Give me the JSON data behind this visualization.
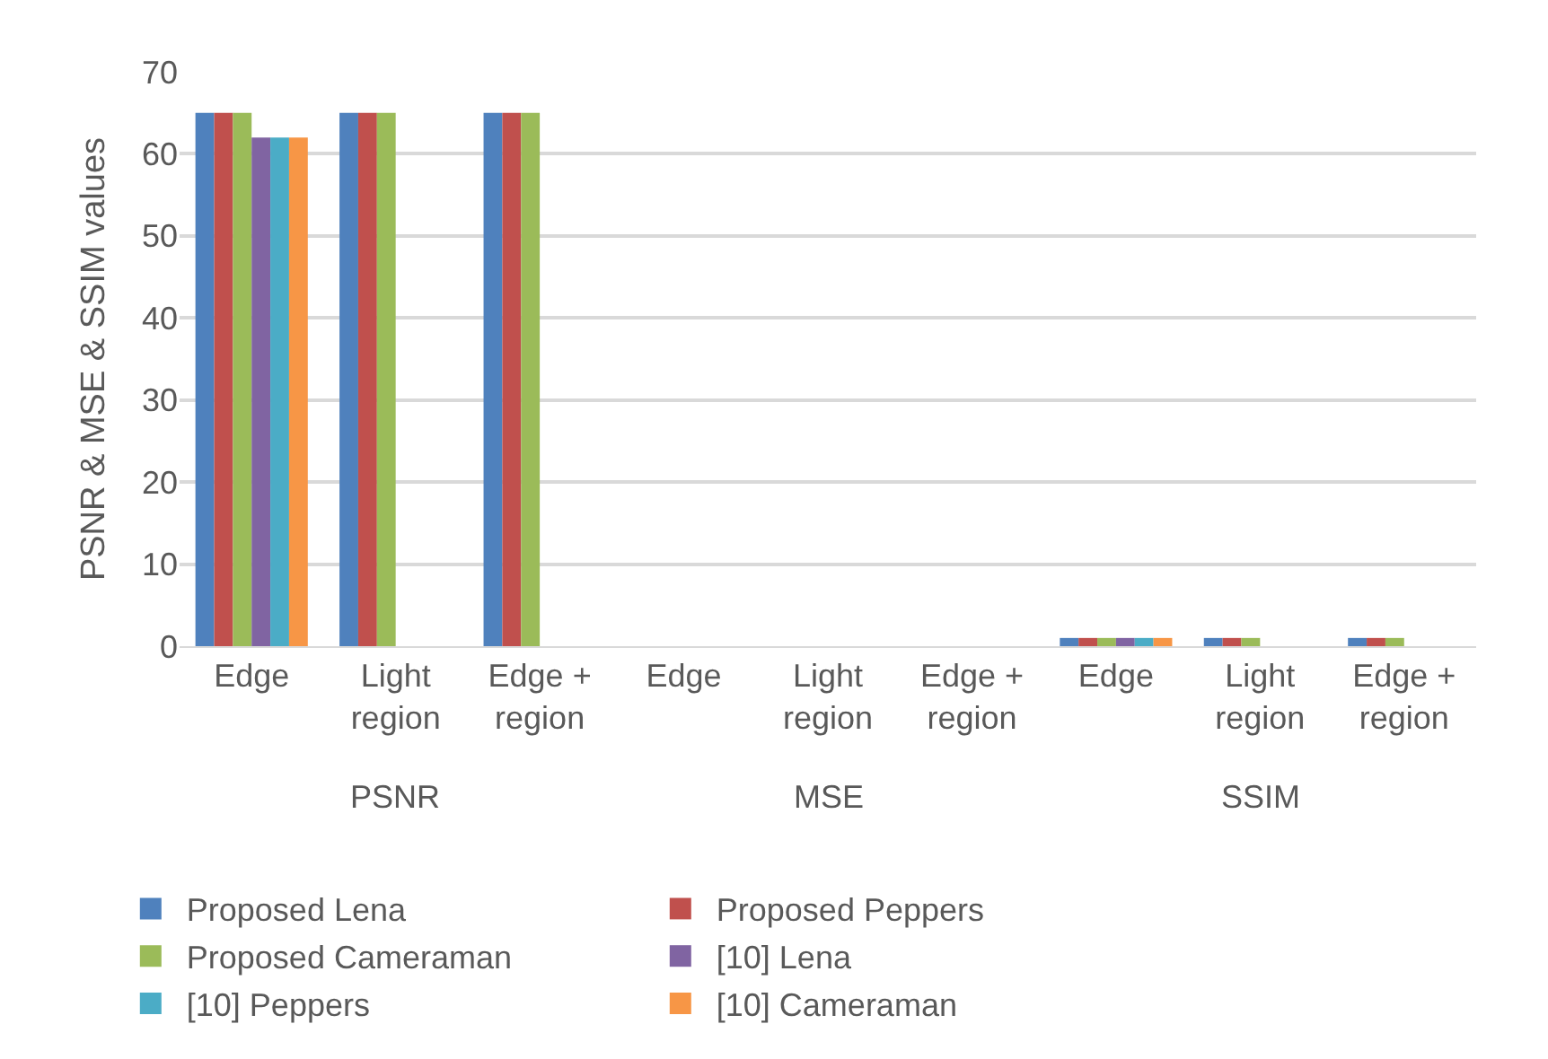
{
  "chart_data": {
    "type": "bar",
    "ylabel": "PSNR & MSE & SSIM values",
    "categories": [
      "Edge",
      "Light region",
      "Edge + region",
      "Edge",
      "Light region",
      "Edge + region",
      "Edge",
      "Light region",
      "Edge + region"
    ],
    "series": [
      {
        "name": "Proposed Lena",
        "color": "#4f81bd",
        "values": [
          65,
          65,
          65,
          0,
          0,
          0,
          1,
          1,
          1
        ]
      },
      {
        "name": "Proposed Peppers",
        "color": "#c0504d",
        "values": [
          65,
          65,
          65,
          0,
          0,
          0,
          1,
          1,
          1
        ]
      },
      {
        "name": "Proposed Cameraman",
        "color": "#9bbb59",
        "values": [
          65,
          65,
          65,
          0,
          0,
          0,
          1,
          1,
          1
        ]
      },
      {
        "name": "[10] Lena",
        "color": "#8064a2",
        "values": [
          62,
          null,
          null,
          0,
          null,
          null,
          1,
          null,
          null
        ]
      },
      {
        "name": "[10] Peppers",
        "color": "#4bacc6",
        "values": [
          62,
          null,
          null,
          0,
          null,
          null,
          1,
          null,
          null
        ]
      },
      {
        "name": "[10] Cameraman",
        "color": "#f79646",
        "values": [
          62,
          null,
          null,
          0,
          null,
          null,
          1,
          null,
          null
        ]
      }
    ],
    "annotations": [
      "PSNR",
      "MSE",
      "SSIM"
    ],
    "ylim": [
      0,
      70
    ],
    "yticks": [
      0,
      10,
      20,
      30,
      40,
      50,
      60,
      70
    ],
    "grid": "y",
    "legend": "bottom"
  }
}
